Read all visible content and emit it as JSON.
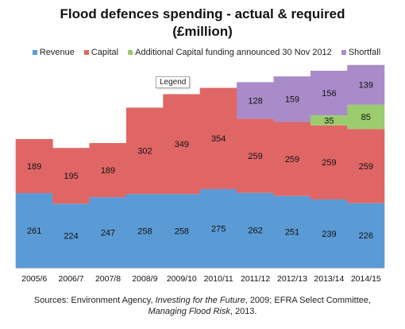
{
  "chart_data": {
    "type": "bar",
    "stacked": true,
    "title": "Flood defences spending - actual & required",
    "subtitle": "(£million)",
    "categories": [
      "2005/6",
      "2006/7",
      "2007/8",
      "2008/9",
      "2009/10",
      "2010/11",
      "2011/12",
      "2012/13",
      "2013/14",
      "2014/15"
    ],
    "series": [
      {
        "name": "Revenue",
        "color": "#5b9bd5",
        "values": [
          261,
          224,
          247,
          258,
          258,
          275,
          262,
          251,
          239,
          226
        ]
      },
      {
        "name": "Capital",
        "color": "#e06666",
        "values": [
          189,
          195,
          189,
          302,
          349,
          354,
          259,
          259,
          259,
          259
        ]
      },
      {
        "name": "Additional Capital funding announced 30 Nov 2012",
        "color": "#9bcc6e",
        "values": [
          0,
          0,
          0,
          0,
          0,
          0,
          0,
          0,
          35,
          85
        ]
      },
      {
        "name": "Shortfall",
        "color": "#a98bc9",
        "values": [
          0,
          0,
          0,
          0,
          0,
          0,
          128,
          159,
          156,
          139
        ]
      }
    ],
    "ylim": [
      0,
      700
    ],
    "grid": false,
    "legend_position": "top"
  },
  "tooltip": "Legend",
  "source": {
    "line1_prefix": "Sources: Environment Agency, ",
    "line1_italic": "Investing for the Future",
    "line1_suffix": ", 2009; EFRA Select Committee,",
    "line2_italic": "Managing Flood Risk",
    "line2_suffix": ", 2013."
  }
}
